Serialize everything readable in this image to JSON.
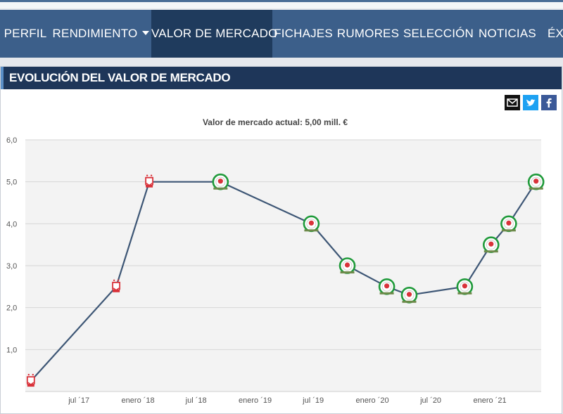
{
  "nav": {
    "items": [
      {
        "label": "PERFIL"
      },
      {
        "label": "RENDIMIENTO",
        "has_dropdown": true
      },
      {
        "label": "VALOR DE MERCADO",
        "active": true
      },
      {
        "label": "FICHAJES"
      },
      {
        "label": "RUMORES"
      },
      {
        "label": "SELECCIÓN"
      },
      {
        "label": "NOTICIAS"
      },
      {
        "label": "ÉXI"
      }
    ]
  },
  "panel": {
    "title": "EVOLUCIÓN DEL VALOR DE MERCADO"
  },
  "share": {
    "icons": [
      "email-icon",
      "twitter-icon",
      "facebook-icon"
    ]
  },
  "colors": {
    "nav_bg": "#3c5f8a",
    "nav_active": "#1f3b5d",
    "header_bg": "#1e3659",
    "line": "#3d5675",
    "club_red": "#d9323a",
    "club_green": "#1f9a3a"
  },
  "chart_data": {
    "type": "line",
    "title": "Valor de mercado actual: 5,00 mill. €",
    "xlabel": "",
    "ylabel": "",
    "ylim": [
      0,
      6
    ],
    "y_ticks": [
      "1,0",
      "2,0",
      "3,0",
      "4,0",
      "5,0",
      "6,0"
    ],
    "x_tick_labels": [
      "jul ´17",
      "enero ´18",
      "jul ´18",
      "enero ´19",
      "jul ´19",
      "enero ´20",
      "jul ´20",
      "enero ´21"
    ],
    "x_tick_dates": [
      "2017-07-01",
      "2018-01-01",
      "2018-07-01",
      "2019-01-01",
      "2019-07-01",
      "2020-01-01",
      "2020-07-01",
      "2021-01-01"
    ],
    "x_range": [
      "2017-01-15",
      "2021-06-10"
    ],
    "grid": true,
    "legend": "none",
    "series": [
      {
        "points": [
          {
            "x": "2017-02-01",
            "y": 0.25,
            "club": "red"
          },
          {
            "x": "2017-10-25",
            "y": 2.5,
            "club": "red"
          },
          {
            "x": "2018-02-05",
            "y": 5.0,
            "club": "red"
          },
          {
            "x": "2018-09-15",
            "y": 5.0,
            "club": "green"
          },
          {
            "x": "2019-06-25",
            "y": 4.0,
            "club": "green"
          },
          {
            "x": "2019-10-15",
            "y": 3.0,
            "club": "green"
          },
          {
            "x": "2020-02-15",
            "y": 2.5,
            "club": "green"
          },
          {
            "x": "2020-04-25",
            "y": 2.3,
            "club": "green"
          },
          {
            "x": "2020-10-15",
            "y": 2.5,
            "club": "green"
          },
          {
            "x": "2021-01-05",
            "y": 3.5,
            "club": "green"
          },
          {
            "x": "2021-03-01",
            "y": 4.0,
            "club": "green"
          },
          {
            "x": "2021-05-25",
            "y": 5.0,
            "club": "green"
          }
        ]
      }
    ]
  }
}
